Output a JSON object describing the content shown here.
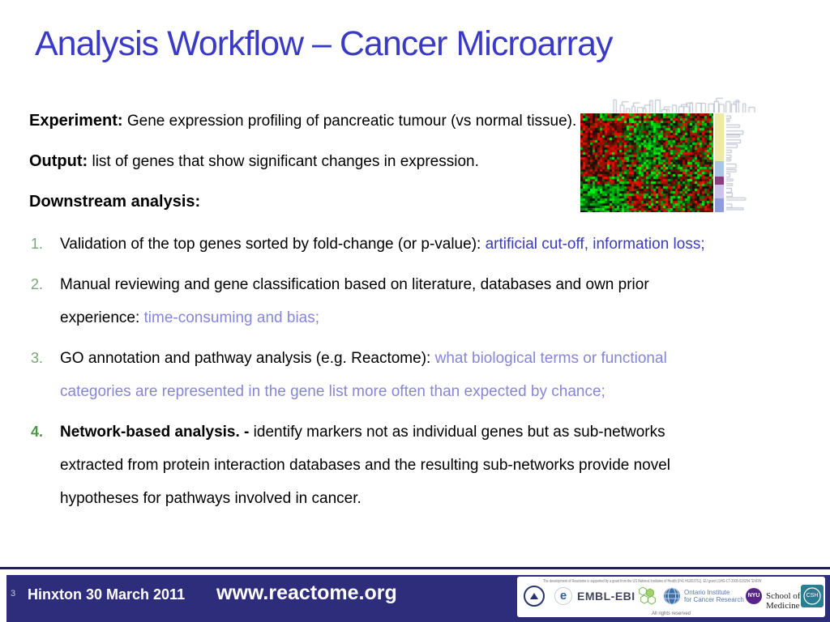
{
  "slide": {
    "title": "Analysis Workflow – Cancer Microarray",
    "intro": [
      {
        "label": "Experiment:",
        "text": " Gene expression profiling of pancreatic tumour (vs normal tissue)."
      },
      {
        "label": "Output:",
        "text": " list of genes that show significant changes in expression."
      },
      {
        "label": "Downstream analysis:",
        "text": ""
      }
    ],
    "items": [
      {
        "number": "1.",
        "number_bold": false,
        "lines": [
          [
            {
              "t": "Validation of the top genes sorted by fold-change (or p-value): ",
              "s": "k"
            },
            {
              "t": "artificial cut-off, information loss;",
              "s": "b"
            }
          ]
        ]
      },
      {
        "number": "2.",
        "number_bold": false,
        "lines": [
          [
            {
              "t": "Manual reviewing and gene classification based on literature, databases and own prior",
              "s": "k"
            }
          ],
          [
            {
              "t": "experience: ",
              "s": "k"
            },
            {
              "t": "time-consuming and bias;",
              "s": "p"
            }
          ]
        ]
      },
      {
        "number": "3.",
        "number_bold": false,
        "lines": [
          [
            {
              "t": "GO annotation and pathway analysis (e.g. Reactome): ",
              "s": "k"
            },
            {
              "t": "what biological terms or functional",
              "s": "p"
            }
          ],
          [
            {
              "t": "categories are represented in the gene list more often than expected by chance;",
              "s": "p"
            }
          ]
        ]
      },
      {
        "number": "4.",
        "number_bold": true,
        "lines": [
          [
            {
              "t": "Network-based analysis. - ",
              "s": "kb"
            },
            {
              "t": "identify markers not as individual genes but as sub-networks",
              "s": "k"
            }
          ],
          [
            {
              "t": "extracted from protein interaction databases and the resulting sub-networks provide novel",
              "s": "k"
            }
          ],
          [
            {
              "t": "hypotheses for pathways involved in cancer.",
              "s": "k"
            }
          ]
        ]
      }
    ]
  },
  "heatmap": {
    "description": "hierarchical-clustering microarray heatmap, red/green cells with top and right dendrograms",
    "up_color": "#C81400",
    "down_color": "#00B414",
    "background": "#060606",
    "strip_segments": [
      {
        "color": "#EFE9A6",
        "frac": 0.48
      },
      {
        "color": "#A9C6E8",
        "frac": 0.16
      },
      {
        "color": "#8E3D7E",
        "frac": 0.08
      },
      {
        "color": "#CBC3EA",
        "frac": 0.14
      },
      {
        "color": "#8E9BDD",
        "frac": 0.14
      }
    ],
    "dendrogram_color": "#B4B9C6"
  },
  "footer": {
    "page_number": "3",
    "venue": "Hinxton 30 March 2011",
    "url": "www.reactome.org",
    "credit": "The development of Reactome is supported by a grant from the US National Institutes of Health (P41 HG003751), EU grant LSHG-CT-2005-518254 “ENFIN”, and the EBI Industry Programme",
    "rights": "All rights reserved",
    "logos": {
      "e_label": "e",
      "embl_ebi": "EMBL-EBI",
      "oicr_line1": "Ontario Institute",
      "oicr_line2": "for Cancer Research",
      "nyu_badge": "NYU",
      "nyu_label": "School of Medicine",
      "cshl_label": "CSH"
    }
  },
  "colors": {
    "title_blue": "#3A3AC6",
    "highlight_blue": "#3A3AC6",
    "highlight_purple": "#8686D9",
    "list_number_green": "#7AA57A",
    "list_number_green_bold": "#479947",
    "footer_navy": "#2D2D7B"
  }
}
